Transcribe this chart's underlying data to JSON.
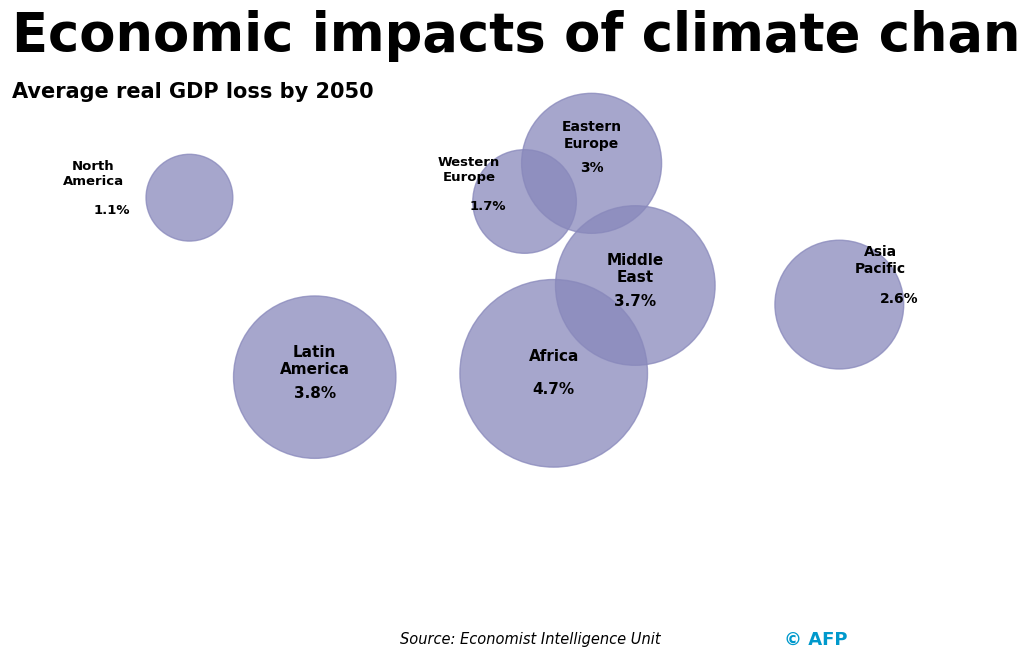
{
  "title": "Economic impacts of climate change",
  "subtitle": "Average real GDP loss by 2050",
  "source": "Source: Economist Intelligence Unit",
  "afp_text": "© AFP",
  "background_color": "#ffffff",
  "map_land_color": "#f2f2f2",
  "map_line_color": "#c8c8c8",
  "bubble_color": "#8888bb",
  "bubble_alpha": 0.75,
  "title_fontsize": 38,
  "subtitle_fontsize": 15,
  "regions": [
    {
      "name": "North\nAmerica",
      "value": "1.1%",
      "lon": -105,
      "lat": 50,
      "size_val": 1.1,
      "label_lon": -138,
      "label_lat": 50
    },
    {
      "name": "Latin\nAmerica",
      "value": "3.8%",
      "lon": -62,
      "lat": 3,
      "size_val": 3.8,
      "label_lon": -62,
      "label_lat": 3
    },
    {
      "name": "Western\nEurope",
      "value": "1.7%",
      "lon": 10,
      "lat": 49,
      "size_val": 1.7,
      "label_lon": -9,
      "label_lat": 51
    },
    {
      "name": "Eastern\nEurope",
      "value": "3%",
      "lon": 33,
      "lat": 59,
      "size_val": 3.0,
      "label_lon": 33,
      "label_lat": 62
    },
    {
      "name": "Middle\nEast",
      "value": "3.7%",
      "lon": 48,
      "lat": 27,
      "size_val": 3.7,
      "label_lon": 48,
      "label_lat": 27
    },
    {
      "name": "Africa",
      "value": "4.7%",
      "lon": 20,
      "lat": 4,
      "size_val": 4.7,
      "label_lon": 20,
      "label_lat": 4
    },
    {
      "name": "Asia\nPacific",
      "value": "2.6%",
      "lon": 118,
      "lat": 22,
      "size_val": 2.6,
      "label_lon": 132,
      "label_lat": 27
    }
  ]
}
